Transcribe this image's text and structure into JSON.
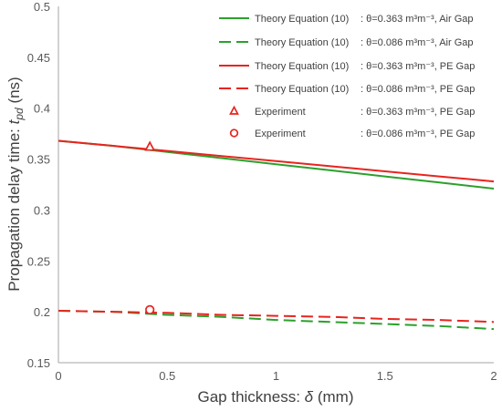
{
  "chart_data": {
    "type": "line",
    "xlabel": {
      "prefix": "Gap thickness: ",
      "symbol": "δ",
      "suffix": " (mm)"
    },
    "ylabel": {
      "prefix": "Propagation delay time: ",
      "symbol": "t",
      "subscript": "pd",
      "suffix": " (ns)"
    },
    "xlim": [
      0,
      2
    ],
    "ylim": [
      0.15,
      0.5
    ],
    "xticks": [
      {
        "value": 0,
        "label": "0"
      },
      {
        "value": 0.5,
        "label": "0.5"
      },
      {
        "value": 1,
        "label": "1"
      },
      {
        "value": 1.5,
        "label": "1.5"
      },
      {
        "value": 2,
        "label": "2"
      }
    ],
    "yticks": [
      {
        "value": 0.15,
        "label": "0.15"
      },
      {
        "value": 0.2,
        "label": "0.2"
      },
      {
        "value": 0.25,
        "label": "0.25"
      },
      {
        "value": 0.3,
        "label": "0.3"
      },
      {
        "value": 0.35,
        "label": "0.35"
      },
      {
        "value": 0.4,
        "label": "0.4"
      },
      {
        "value": 0.45,
        "label": "0.45"
      },
      {
        "value": 0.5,
        "label": "0.5"
      }
    ],
    "grid": false,
    "legend_position": "top-right",
    "series": [
      {
        "name": "Theory Equation (10)",
        "condition": ": θ=0.363 m³m⁻³, Air Gap",
        "kind": "line",
        "color": "#2ca02c",
        "dash": "solid",
        "x": [
          0,
          0.25,
          0.5,
          0.75,
          1,
          1.25,
          1.5,
          1.75,
          2
        ],
        "y": [
          0.368,
          0.363,
          0.357,
          0.351,
          0.345,
          0.339,
          0.333,
          0.327,
          0.321
        ]
      },
      {
        "name": "Theory Equation (10)",
        "condition": ": θ=0.086 m³m⁻³, Air Gap",
        "kind": "line",
        "color": "#2ca02c",
        "dash": "dashed",
        "x": [
          0,
          0.25,
          0.5,
          0.75,
          1,
          1.25,
          1.5,
          1.75,
          2
        ],
        "y": [
          0.201,
          0.2,
          0.197,
          0.195,
          0.192,
          0.19,
          0.188,
          0.186,
          0.183
        ]
      },
      {
        "name": "Theory Equation (10)",
        "condition": ": θ=0.363 m³m⁻³, PE Gap",
        "kind": "line",
        "color": "#e8241f",
        "dash": "solid",
        "x": [
          0,
          0.25,
          0.5,
          0.75,
          1,
          1.25,
          1.5,
          1.75,
          2
        ],
        "y": [
          0.368,
          0.363,
          0.358,
          0.353,
          0.348,
          0.343,
          0.338,
          0.333,
          0.328
        ]
      },
      {
        "name": "Theory Equation (10)",
        "condition": ": θ=0.086 m³m⁻³, PE Gap",
        "kind": "line",
        "color": "#e8241f",
        "dash": "dashed",
        "x": [
          0,
          0.25,
          0.5,
          0.75,
          1,
          1.25,
          1.5,
          1.75,
          2
        ],
        "y": [
          0.201,
          0.2,
          0.199,
          0.197,
          0.196,
          0.195,
          0.193,
          0.192,
          0.19
        ]
      },
      {
        "name": "Experiment",
        "condition": ": θ=0.363 m³m⁻³, PE Gap",
        "kind": "marker",
        "marker": "triangle",
        "color": "#e8241f",
        "x": [
          0.42
        ],
        "y": [
          0.362
        ]
      },
      {
        "name": "Experiment",
        "condition": ": θ=0.086 m³m⁻³, PE Gap",
        "kind": "marker",
        "marker": "circle",
        "color": "#e8241f",
        "x": [
          0.42
        ],
        "y": [
          0.202
        ]
      }
    ]
  }
}
